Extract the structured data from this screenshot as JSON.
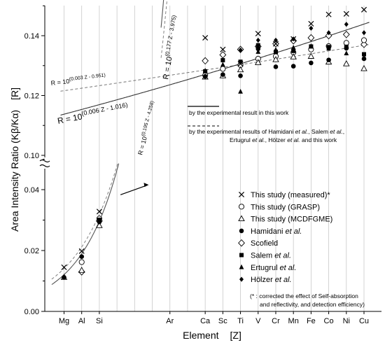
{
  "chart_data": {
    "type": "scatter",
    "xlabel": "Element",
    "xunit": "[Z]",
    "ylabel": "Area Intensity Ratio  (Kβ/Kα)",
    "yunit": "[R]",
    "categories": [
      "Mg",
      "Al",
      "Si",
      "Ar",
      "Ca",
      "Sc",
      "Ti",
      "V",
      "Cr",
      "Mn",
      "Fe",
      "Co",
      "Ni",
      "Cu"
    ],
    "x_z": [
      12,
      13,
      14,
      18,
      20,
      21,
      22,
      23,
      24,
      25,
      26,
      27,
      28,
      29
    ],
    "y_ticks_lower": [
      0.0,
      0.02,
      0.04
    ],
    "y_ticks_upper": [
      0.1,
      0.12,
      0.14
    ],
    "y_ticks_lower_labels": [
      "0.00",
      "0.02",
      "0.04"
    ],
    "y_ticks_upper_labels": [
      "0.10",
      "0.12",
      "0.14"
    ],
    "ylim_lower": [
      0,
      0.05
    ],
    "ylim_upper": [
      0.1,
      0.15
    ],
    "grid_vertical": true,
    "series": [
      {
        "name": "This study (measured)*",
        "marker": "x",
        "points": [
          [
            12,
            0.0145
          ],
          [
            13,
            0.0198
          ],
          [
            14,
            0.0328
          ],
          [
            20,
            0.1393
          ],
          [
            21,
            0.1354
          ],
          [
            22,
            0.1306
          ],
          [
            23,
            0.1407
          ],
          [
            24,
            0.1373
          ],
          [
            25,
            0.1389
          ],
          [
            26,
            0.144
          ],
          [
            27,
            0.1471
          ],
          [
            28,
            0.1473
          ],
          [
            29,
            0.1487
          ]
        ]
      },
      {
        "name": "This study (GRASP)",
        "marker": "circle-open",
        "points": [
          [
            13,
            0.0162
          ],
          [
            14,
            0.0305
          ],
          [
            20,
            0.1268
          ],
          [
            21,
            0.1289
          ],
          [
            22,
            0.1302
          ],
          [
            23,
            0.1323
          ],
          [
            24,
            0.1331
          ],
          [
            25,
            0.1344
          ],
          [
            26,
            0.1354
          ],
          [
            27,
            0.1365
          ],
          [
            28,
            0.1376
          ],
          [
            29,
            0.1385
          ]
        ]
      },
      {
        "name": "This study (MCDFGME)",
        "marker": "triangle-open",
        "points": [
          [
            12,
            0.0112
          ],
          [
            13,
            0.0135
          ],
          [
            14,
            0.0282
          ],
          [
            20,
            0.1262
          ],
          [
            21,
            0.1266
          ],
          [
            22,
            0.1286
          ],
          [
            23,
            0.131
          ],
          [
            24,
            0.132
          ],
          [
            25,
            0.1329
          ],
          [
            26,
            0.1331
          ],
          [
            27,
            0.1312
          ],
          [
            28,
            0.1306
          ],
          [
            29,
            0.129
          ]
        ]
      },
      {
        "name": "Hamidani",
        "name_suffix": "et al.",
        "marker": "circle-filled",
        "points": [
          [
            12,
            0.0112
          ],
          [
            13,
            0.018
          ],
          [
            14,
            0.0294
          ],
          [
            20,
            0.1264
          ],
          [
            21,
            0.127
          ],
          [
            22,
            0.1266
          ],
          [
            23,
            0.1356
          ],
          [
            24,
            0.1296
          ],
          [
            25,
            0.1298
          ],
          [
            26,
            0.1309
          ],
          [
            27,
            0.1319
          ],
          [
            28,
            0.1358
          ],
          [
            29,
            0.1323
          ]
        ]
      },
      {
        "name": "Scofield",
        "marker": "diamond-open",
        "points": [
          [
            13,
            0.013
          ],
          [
            14,
            0.0297
          ],
          [
            20,
            0.1316
          ],
          [
            21,
            0.1336
          ],
          [
            22,
            0.1354
          ],
          [
            23,
            0.1364
          ],
          [
            24,
            0.1373
          ],
          [
            25,
            0.1383
          ],
          [
            26,
            0.1393
          ],
          [
            27,
            0.14
          ],
          [
            28,
            0.1404
          ],
          [
            29,
            0.1371
          ]
        ]
      },
      {
        "name": "Salem",
        "name_suffix": "et al.",
        "marker": "square-filled",
        "points": [
          [
            14,
            0.0301
          ],
          [
            20,
            0.1281
          ],
          [
            21,
            0.1318
          ],
          [
            22,
            0.1313
          ],
          [
            23,
            0.1368
          ],
          [
            24,
            0.1346
          ],
          [
            25,
            0.1349
          ],
          [
            26,
            0.1364
          ],
          [
            27,
            0.1362
          ],
          [
            28,
            0.1363
          ],
          [
            29,
            0.1338
          ]
        ]
      },
      {
        "name": "Ertugrul",
        "name_suffix": "et al.",
        "marker": "triangle-filled",
        "points": [
          [
            14,
            0.03
          ],
          [
            20,
            0.1283
          ],
          [
            21,
            0.1303
          ],
          [
            22,
            0.1213
          ],
          [
            23,
            0.1346
          ],
          [
            24,
            0.1353
          ],
          [
            25,
            0.136
          ],
          [
            26,
            0.1365
          ],
          [
            27,
            0.1357
          ],
          [
            28,
            0.1341
          ],
          [
            29,
            0.1326
          ]
        ]
      },
      {
        "name": "Hölzer",
        "name_suffix": "et al.",
        "marker": "diamond-filled",
        "points": [
          [
            22,
            0.1352
          ],
          [
            23,
            0.1385
          ],
          [
            24,
            0.1385
          ],
          [
            25,
            0.1389
          ],
          [
            26,
            0.1425
          ],
          [
            27,
            0.141
          ],
          [
            28,
            0.1438
          ],
          [
            29,
            0.141
          ]
        ]
      }
    ],
    "fits": [
      {
        "equation_label": "R = 10",
        "exponent": "(0.003 Z - 0.951)",
        "a": 0.003,
        "b": -0.951,
        "style": "dashed"
      },
      {
        "equation_label": "R = 10",
        "exponent": "(0.006 Z - 1.016)",
        "a": 0.006,
        "b": -1.016,
        "style": "solid"
      },
      {
        "equation_label": "R = 10",
        "exponent": "(0.195 Z - 4.258)",
        "a": 0.195,
        "b": -4.258,
        "style": "solid"
      },
      {
        "equation_label": "R = 10",
        "exponent": "(0.177 Z - 3.975)",
        "a": 0.177,
        "b": -3.975,
        "style": "dashed"
      }
    ],
    "line_legend": [
      {
        "text": "by the experimental result in this work",
        "style": "solid"
      },
      {
        "text_parts": [
          "by the experimental results of Hamidani ",
          "et al.",
          ", Salem ",
          "et al.",
          ","
        ],
        "style": "dashed"
      },
      {
        "text_parts": [
          "Ertugrul ",
          "et al.",
          ", Hölzer ",
          "et al.",
          " and this work"
        ]
      }
    ],
    "footnote_1": "(* : corrected the effect of Self-absorption",
    "footnote_2": "and reflectivity, and detection efficiency)"
  }
}
